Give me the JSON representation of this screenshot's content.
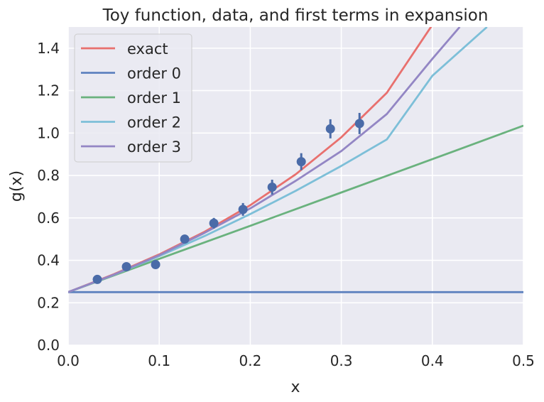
{
  "chart_data": {
    "type": "line",
    "title": "Toy function, data, and first terms in expansion",
    "xlabel": "x",
    "ylabel": "g(x)",
    "xlim": [
      0.0,
      0.5
    ],
    "ylim": [
      0.0,
      1.5
    ],
    "xticks": [
      "0.0",
      "0.1",
      "0.2",
      "0.3",
      "0.4",
      "0.5"
    ],
    "yticks": [
      "0.0",
      "0.2",
      "0.4",
      "0.6",
      "0.8",
      "1.0",
      "1.2",
      "1.4"
    ],
    "grid": true,
    "legend_position": "top-left",
    "series": [
      {
        "name": "exact",
        "color": "#e8706e",
        "x": [
          0.0,
          0.05,
          0.1,
          0.15,
          0.2,
          0.25,
          0.3,
          0.35,
          0.4
        ],
        "y": [
          0.25,
          0.334,
          0.428,
          0.535,
          0.66,
          0.806,
          0.98,
          1.19,
          1.51
        ]
      },
      {
        "name": "order 0",
        "color": "#5f82bf",
        "x": [
          0.0,
          0.5
        ],
        "y": [
          0.25,
          0.25
        ]
      },
      {
        "name": "order 1",
        "color": "#6ab27e",
        "x": [
          0.0,
          0.1,
          0.2,
          0.3,
          0.4,
          0.5
        ],
        "y": [
          0.25,
          0.407,
          0.563,
          0.72,
          0.877,
          1.035
        ]
      },
      {
        "name": "order 2",
        "color": "#7dbfd8",
        "x": [
          0.0,
          0.05,
          0.1,
          0.15,
          0.2,
          0.25,
          0.3,
          0.35,
          0.4,
          0.46
        ],
        "y": [
          0.25,
          0.331,
          0.42,
          0.515,
          0.618,
          0.728,
          0.845,
          0.97,
          1.27,
          1.5
        ]
      },
      {
        "name": "order 3",
        "color": "#9386c4",
        "x": [
          0.0,
          0.05,
          0.1,
          0.15,
          0.2,
          0.25,
          0.3,
          0.35,
          0.4,
          0.43
        ],
        "y": [
          0.25,
          0.332,
          0.424,
          0.53,
          0.645,
          0.775,
          0.915,
          1.09,
          1.35,
          1.5
        ]
      }
    ],
    "data_points": {
      "color": "#4a6ba8",
      "x": [
        0.032,
        0.064,
        0.096,
        0.128,
        0.16,
        0.192,
        0.224,
        0.256,
        0.288,
        0.32
      ],
      "y": [
        0.31,
        0.37,
        0.38,
        0.5,
        0.575,
        0.64,
        0.745,
        0.865,
        1.02,
        1.045
      ],
      "yerr": [
        0.012,
        0.012,
        0.015,
        0.02,
        0.025,
        0.03,
        0.035,
        0.04,
        0.045,
        0.05
      ]
    }
  }
}
